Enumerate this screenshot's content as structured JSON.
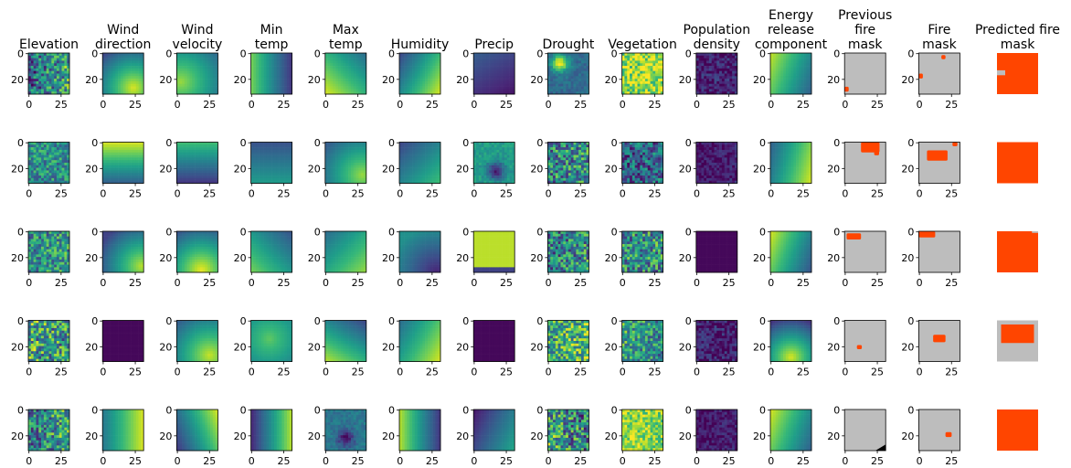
{
  "figure": {
    "column_titles": [
      [
        "Elevation"
      ],
      [
        "Wind",
        "direction"
      ],
      [
        "Wind",
        "velocity"
      ],
      [
        "Min",
        "temp"
      ],
      [
        "Max",
        "temp"
      ],
      [
        "Humidity"
      ],
      [
        "Precip"
      ],
      [
        "Drought"
      ],
      [
        "Vegetation"
      ],
      [
        "Population",
        "density"
      ],
      [
        "Energy",
        "release",
        "component"
      ],
      [
        "Previous",
        "fire",
        "mask"
      ],
      [
        "Fire",
        "mask"
      ],
      [
        "Predicted fire",
        "mask"
      ]
    ],
    "colors": {
      "viridis_dark": "#440154",
      "viridis_mid": "#21918c",
      "viridis_bright": "#fde725",
      "mask_background": "#bdbdbd",
      "fire": "#ff4500"
    }
  },
  "chart_data": {
    "type": "heatmap",
    "rows": 5,
    "columns": 14,
    "image_size": [
      32,
      32
    ],
    "colormap": "viridis",
    "xticks": [
      0,
      25
    ],
    "yticks": [
      0,
      20
    ],
    "xlim": [
      0,
      32
    ],
    "ylim": [
      32,
      0
    ],
    "grid": false,
    "panels_with_axes": 13,
    "panels": [
      [
        {
          "kind": "noise",
          "v0": 0.3,
          "v1": 0.6,
          "angle": 0,
          "amp": 0.35
        },
        {
          "kind": "radial",
          "v0": 0.95,
          "v1": 0.2,
          "cx": 0.75,
          "cy": 0.85
        },
        {
          "kind": "radial",
          "v0": 0.85,
          "v1": 0.35,
          "cx": 0.1,
          "cy": 0.7
        },
        {
          "kind": "linear",
          "v0": 0.8,
          "v1": 0.15,
          "angle": 0
        },
        {
          "kind": "linear",
          "v0": 0.35,
          "v1": 0.95,
          "angle": 135
        },
        {
          "kind": "linear",
          "v0": 0.2,
          "v1": 0.95,
          "angle": 30
        },
        {
          "kind": "linear",
          "v0": 0.3,
          "v1": 0.05,
          "angle": 60
        },
        {
          "kind": "blob",
          "v0": 0.35,
          "v1": 0.98,
          "cx": 0.3,
          "cy": 0.25
        },
        {
          "kind": "noise",
          "v0": 0.8,
          "v1": 0.9,
          "angle": 0,
          "amp": 0.25
        },
        {
          "kind": "noise",
          "v0": 0.08,
          "v1": 0.1,
          "angle": 0,
          "amp": 0.15
        },
        {
          "kind": "linear",
          "v0": 0.92,
          "v1": 0.3,
          "angle": 20
        },
        {
          "kind": "mask",
          "fire": [
            [
              0.0,
              0.82,
              0.1,
              0.12
            ]
          ],
          "black": []
        },
        {
          "kind": "mask",
          "fire": [
            [
              0.55,
              0.05,
              0.1,
              0.1
            ],
            [
              0.0,
              0.5,
              0.1,
              0.12
            ]
          ],
          "black": []
        },
        {
          "kind": "pred",
          "fire": [
            [
              0.0,
              0.0,
              1.0,
              1.0
            ]
          ],
          "gray": [
            [
              0.0,
              0.42,
              0.2,
              0.12
            ]
          ]
        }
      ],
      [
        {
          "kind": "noise",
          "v0": 0.5,
          "v1": 0.5,
          "angle": 0,
          "amp": 0.25
        },
        {
          "kind": "linear",
          "v0": 0.95,
          "v1": 0.3,
          "angle": 90
        },
        {
          "kind": "linear",
          "v0": 0.7,
          "v1": 0.15,
          "angle": 90
        },
        {
          "kind": "linear",
          "v0": 0.25,
          "v1": 0.55,
          "angle": 90
        },
        {
          "kind": "radial",
          "v0": 0.85,
          "v1": 0.3,
          "cx": 0.9,
          "cy": 0.8
        },
        {
          "kind": "linear",
          "v0": 0.2,
          "v1": 0.7,
          "angle": 45
        },
        {
          "kind": "blob",
          "v0": 0.55,
          "v1": 0.05,
          "cx": 0.55,
          "cy": 0.7
        },
        {
          "kind": "noise",
          "v0": 0.45,
          "v1": 0.5,
          "angle": 0,
          "amp": 0.35
        },
        {
          "kind": "noise",
          "v0": 0.3,
          "v1": 0.35,
          "angle": 0,
          "amp": 0.3
        },
        {
          "kind": "noise",
          "v0": 0.05,
          "v1": 0.1,
          "angle": 0,
          "amp": 0.1
        },
        {
          "kind": "linear",
          "v0": 0.3,
          "v1": 0.95,
          "angle": 15
        },
        {
          "kind": "mask",
          "fire": [
            [
              0.4,
              0.0,
              0.45,
              0.25
            ],
            [
              0.72,
              0.2,
              0.12,
              0.12
            ]
          ],
          "black": []
        },
        {
          "kind": "mask",
          "fire": [
            [
              0.2,
              0.2,
              0.5,
              0.25
            ],
            [
              0.82,
              0.0,
              0.12,
              0.1
            ]
          ],
          "black": []
        },
        {
          "kind": "pred",
          "fire": [
            [
              0.0,
              0.0,
              1.0,
              1.0
            ]
          ],
          "gray": []
        }
      ],
      [
        {
          "kind": "noise",
          "v0": 0.45,
          "v1": 0.55,
          "angle": 0,
          "amp": 0.3
        },
        {
          "kind": "radial",
          "v0": 0.9,
          "v1": 0.2,
          "cx": 0.95,
          "cy": 0.85
        },
        {
          "kind": "radial",
          "v0": 0.98,
          "v1": 0.25,
          "cx": 0.6,
          "cy": 0.95
        },
        {
          "kind": "linear",
          "v0": 0.25,
          "v1": 0.8,
          "angle": 135
        },
        {
          "kind": "linear",
          "v0": 0.35,
          "v1": 0.85,
          "angle": 45
        },
        {
          "kind": "radial",
          "v0": 0.1,
          "v1": 0.5,
          "cx": 0.9,
          "cy": 1.0
        },
        {
          "kind": "flat",
          "v0": 0.9,
          "v1": 0.9,
          "band": [
            0.85,
            0.2
          ]
        },
        {
          "kind": "noise",
          "v0": 0.4,
          "v1": 0.5,
          "angle": 0,
          "amp": 0.35
        },
        {
          "kind": "noise",
          "v0": 0.5,
          "v1": 0.5,
          "angle": 0,
          "amp": 0.35
        },
        {
          "kind": "flat",
          "v0": 0.02,
          "v1": 0.02,
          "band": [
            0,
            0
          ]
        },
        {
          "kind": "linear",
          "v0": 0.95,
          "v1": 0.25,
          "angle": 20
        },
        {
          "kind": "mask",
          "fire": [
            [
              0.05,
              0.05,
              0.35,
              0.15
            ]
          ],
          "black": []
        },
        {
          "kind": "mask",
          "fire": [
            [
              0.0,
              0.0,
              0.4,
              0.15
            ]
          ],
          "black": []
        },
        {
          "kind": "pred",
          "fire": [
            [
              0.0,
              0.0,
              1.0,
              1.0
            ]
          ],
          "gray": [
            [
              0.85,
              0.0,
              0.15,
              0.04
            ]
          ]
        }
      ],
      [
        {
          "kind": "noise",
          "v0": 0.6,
          "v1": 0.5,
          "angle": 0,
          "amp": 0.4
        },
        {
          "kind": "flat",
          "v0": 0.02,
          "v1": 0.02,
          "band": [
            0,
            0
          ]
        },
        {
          "kind": "radial",
          "v0": 0.92,
          "v1": 0.3,
          "cx": 0.8,
          "cy": 0.85
        },
        {
          "kind": "radial",
          "v0": 0.75,
          "v1": 0.35,
          "cx": 0.45,
          "cy": 0.45
        },
        {
          "kind": "linear",
          "v0": 0.2,
          "v1": 0.9,
          "angle": 120
        },
        {
          "kind": "linear",
          "v0": 0.35,
          "v1": 0.95,
          "angle": 30
        },
        {
          "kind": "flat",
          "v0": 0.02,
          "v1": 0.02,
          "band": [
            0,
            0
          ]
        },
        {
          "kind": "noise",
          "v0": 0.55,
          "v1": 0.7,
          "angle": 0,
          "amp": 0.35
        },
        {
          "kind": "noise",
          "v0": 0.6,
          "v1": 0.45,
          "angle": 0,
          "amp": 0.3
        },
        {
          "kind": "noise",
          "v0": 0.08,
          "v1": 0.1,
          "angle": 0,
          "amp": 0.15
        },
        {
          "kind": "radial",
          "v0": 0.95,
          "v1": 0.05,
          "cx": 0.5,
          "cy": 0.9
        },
        {
          "kind": "mask",
          "fire": [
            [
              0.3,
              0.6,
              0.12,
              0.1
            ]
          ],
          "black": []
        },
        {
          "kind": "mask",
          "fire": [
            [
              0.35,
              0.35,
              0.3,
              0.18
            ]
          ],
          "black": []
        },
        {
          "kind": "pred",
          "fire": [
            [
              0.1,
              0.1,
              0.8,
              0.45
            ]
          ],
          "gray": []
        }
      ],
      [
        {
          "kind": "noise",
          "v0": 0.4,
          "v1": 0.6,
          "angle": 0,
          "amp": 0.35
        },
        {
          "kind": "linear",
          "v0": 0.4,
          "v1": 0.95,
          "angle": 0
        },
        {
          "kind": "linear",
          "v0": 0.95,
          "v1": 0.15,
          "angle": 160
        },
        {
          "kind": "linear",
          "v0": 0.1,
          "v1": 0.9,
          "angle": 0
        },
        {
          "kind": "blob",
          "v0": 0.4,
          "v1": 0.05,
          "cx": 0.5,
          "cy": 0.7
        },
        {
          "kind": "linear",
          "v0": 0.9,
          "v1": 0.15,
          "angle": 0
        },
        {
          "kind": "linear",
          "v0": 0.05,
          "v1": 0.6,
          "angle": 25
        },
        {
          "kind": "noise",
          "v0": 0.6,
          "v1": 0.4,
          "angle": 0,
          "amp": 0.4
        },
        {
          "kind": "noise",
          "v0": 0.85,
          "v1": 0.8,
          "angle": 0,
          "amp": 0.2
        },
        {
          "kind": "noise",
          "v0": 0.05,
          "v1": 0.1,
          "angle": 0,
          "amp": 0.1
        },
        {
          "kind": "linear",
          "v0": 0.95,
          "v1": 0.3,
          "angle": 20
        },
        {
          "kind": "mask",
          "fire": [],
          "black": [
            [
              0.75,
              0.85,
              0.25,
              0.15
            ]
          ]
        },
        {
          "kind": "mask",
          "fire": [
            [
              0.65,
              0.55,
              0.15,
              0.12
            ]
          ],
          "black": []
        },
        {
          "kind": "pred",
          "fire": [
            [
              0.0,
              0.0,
              1.0,
              1.0
            ]
          ],
          "gray": []
        }
      ]
    ]
  }
}
